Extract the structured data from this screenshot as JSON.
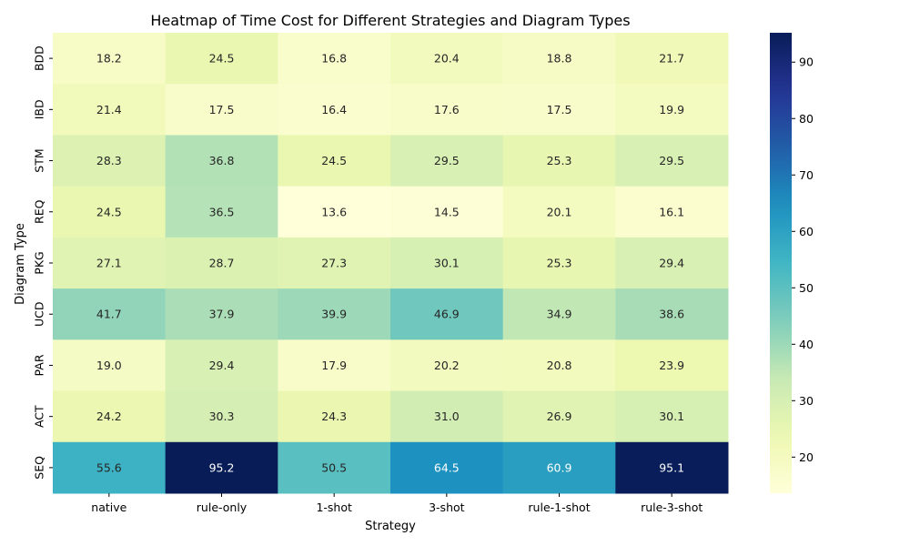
{
  "chart_data": {
    "type": "heatmap",
    "title": "Heatmap of Time Cost for Different Strategies and Diagram Types",
    "xlabel": "Strategy",
    "ylabel": "Diagram Type",
    "x_categories": [
      "native",
      "rule-only",
      "1-shot",
      "3-shot",
      "rule-1-shot",
      "rule-3-shot"
    ],
    "y_categories": [
      "BDD",
      "IBD",
      "STM",
      "REQ",
      "PKG",
      "UCD",
      "PAR",
      "ACT",
      "SEQ"
    ],
    "values": [
      [
        18.2,
        24.5,
        16.8,
        20.4,
        18.8,
        21.7
      ],
      [
        21.4,
        17.5,
        16.4,
        17.6,
        17.5,
        19.9
      ],
      [
        28.3,
        36.8,
        24.5,
        29.5,
        25.3,
        29.5
      ],
      [
        24.5,
        36.5,
        13.6,
        14.5,
        20.1,
        16.1
      ],
      [
        27.1,
        28.7,
        27.3,
        30.1,
        25.3,
        29.4
      ],
      [
        41.7,
        37.9,
        39.9,
        46.9,
        34.9,
        38.6
      ],
      [
        19.0,
        29.4,
        17.9,
        20.2,
        20.8,
        23.9
      ],
      [
        24.2,
        30.3,
        24.3,
        31.0,
        26.9,
        30.1
      ],
      [
        55.6,
        95.2,
        50.5,
        64.5,
        60.9,
        95.1
      ]
    ],
    "value_format": "1 decimal",
    "colorscale": "YlGnBu",
    "color_range": [
      13.6,
      95.2
    ],
    "colorbar_ticks": [
      20,
      30,
      40,
      50,
      60,
      70,
      80,
      90
    ],
    "grid": false,
    "colorbar": "right"
  }
}
